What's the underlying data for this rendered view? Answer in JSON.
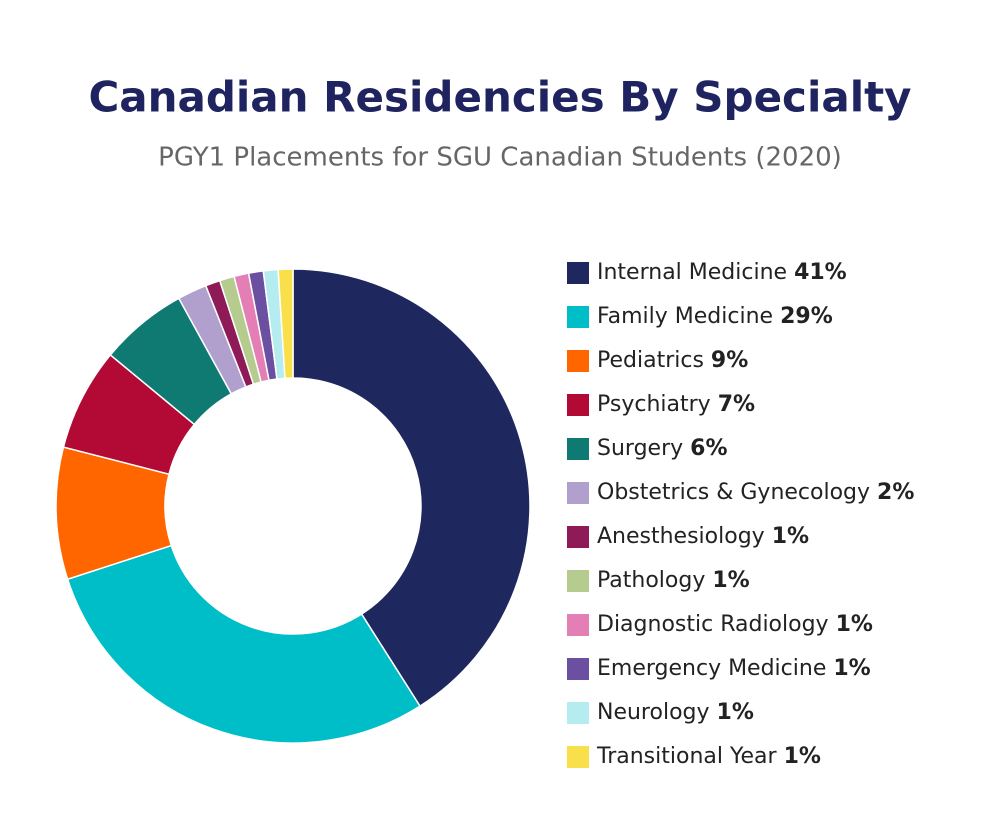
{
  "chart_data": {
    "type": "donut",
    "title": "Canadian Residencies By Specialty",
    "subtitle": "PGY1 Placements for SGU Canadian Students (2020)",
    "categories": [
      "Internal Medicine",
      "Family Medicine",
      "Pediatrics",
      "Psychiatry",
      "Surgery",
      "Obstetrics & Gynecology",
      "Anesthesiology",
      "Pathology",
      "Diagnostic Radiology",
      "Emergency Medicine",
      "Neurology",
      "Transitional Year"
    ],
    "values": [
      41,
      29,
      9,
      7,
      6,
      2,
      1,
      1,
      1,
      1,
      1,
      1
    ],
    "value_labels": [
      "41%",
      "29%",
      "9%",
      "7%",
      "6%",
      "2%",
      "1%",
      "1%",
      "1%",
      "1%",
      "1%",
      "1%"
    ],
    "colors": [
      "#1f285e",
      "#00bec8",
      "#ff6600",
      "#b20a35",
      "#0e7a72",
      "#b19fce",
      "#8e1a57",
      "#b5cc8e",
      "#e37fb5",
      "#6b4fa0",
      "#b4ecef",
      "#f9e04b"
    ],
    "legend": "right"
  }
}
